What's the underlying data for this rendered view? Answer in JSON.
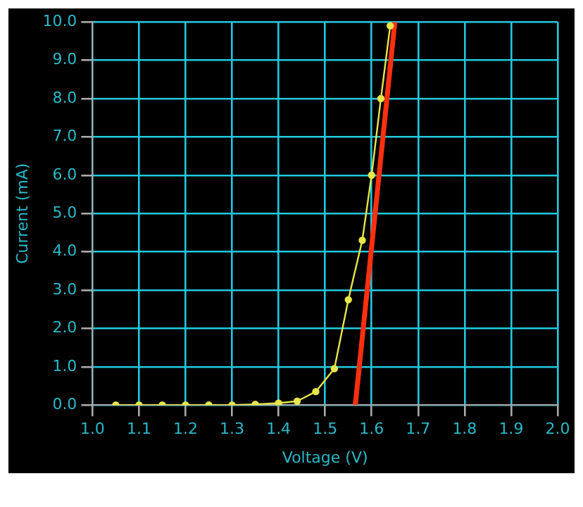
{
  "chart_data": {
    "type": "line",
    "xlabel": "Voltage (V)",
    "ylabel": "Current (mA)",
    "xlim": [
      1.0,
      2.0
    ],
    "xticks": [
      {
        "value": 1.0,
        "label": "1.0"
      },
      {
        "value": 1.1,
        "label": "1.1"
      },
      {
        "value": 1.2,
        "label": "1.2"
      },
      {
        "value": 1.3,
        "label": "1.3"
      },
      {
        "value": 1.4,
        "label": "1.4"
      },
      {
        "value": 1.5,
        "label": "1.5"
      },
      {
        "value": 1.6,
        "label": "1.6"
      },
      {
        "value": 1.7,
        "label": "1.7"
      },
      {
        "value": 1.8,
        "label": "1.8"
      },
      {
        "value": 1.9,
        "label": "1.9"
      },
      {
        "value": 2.0,
        "label": "2.0"
      }
    ],
    "ylim": [
      0,
      10
    ],
    "yticks": [
      {
        "value": 0,
        "label": "0.0"
      },
      {
        "value": 1,
        "label": "1.0"
      },
      {
        "value": 2,
        "label": "2.0"
      },
      {
        "value": 3,
        "label": "3.0"
      },
      {
        "value": 4,
        "label": "4.0"
      },
      {
        "value": 5,
        "label": "5.0"
      },
      {
        "value": 6,
        "label": "6.0"
      },
      {
        "value": 7,
        "label": "7.0"
      },
      {
        "value": 8,
        "label": "8.0"
      },
      {
        "value": 9,
        "label": "9.0"
      },
      {
        "value": 10,
        "label": "10.0"
      }
    ],
    "grid": true,
    "legend": false,
    "marker": "circle",
    "line_style": "solid",
    "series": [
      {
        "color": "#e6e64a",
        "x": [
          1.05,
          1.1,
          1.15,
          1.2,
          1.25,
          1.3,
          1.35,
          1.4,
          1.44,
          1.48,
          1.52,
          1.55,
          1.58,
          1.6,
          1.62,
          1.64
        ],
        "values": [
          0,
          0,
          0,
          0,
          0,
          0,
          0.02,
          0.05,
          0.1,
          0.35,
          0.95,
          2.75,
          4.3,
          6.0,
          8.0,
          9.9
        ]
      },
      {
        "type": "line",
        "marker": "none",
        "color": "#ff3010",
        "x": [
          1.565,
          1.65
        ],
        "values": [
          0,
          10
        ]
      }
    ]
  }
}
